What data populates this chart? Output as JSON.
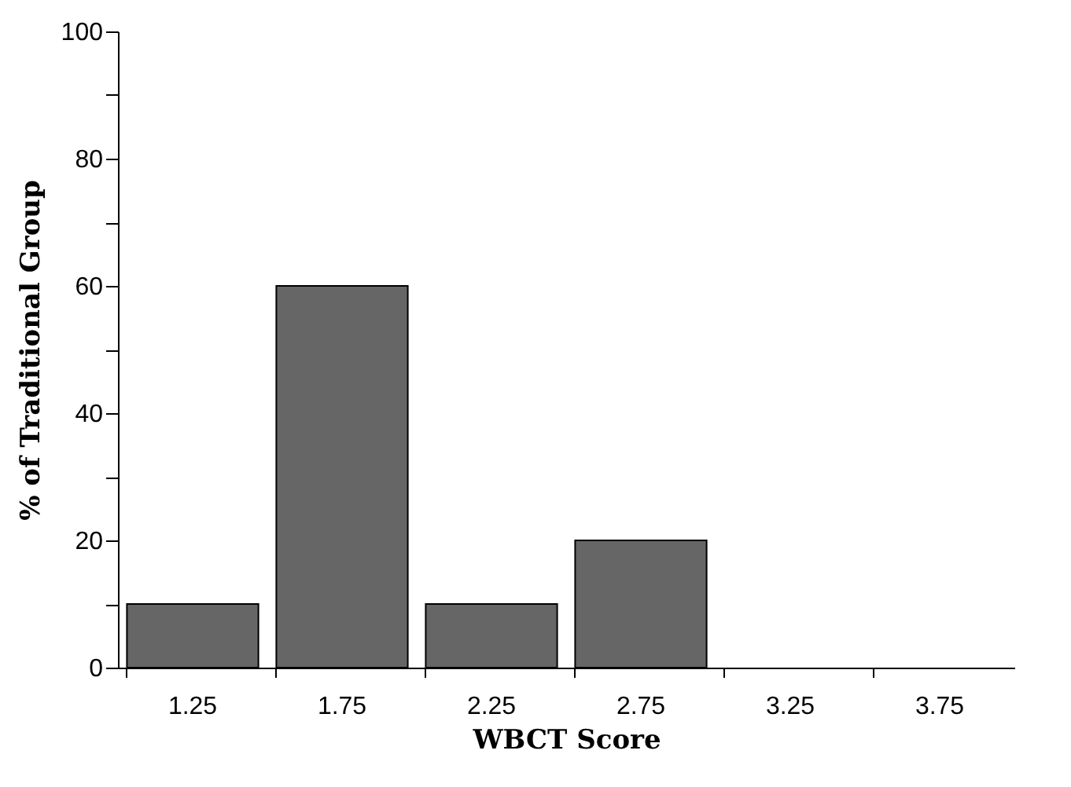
{
  "chart_data": {
    "type": "bar",
    "xlabel": "WBCT Score",
    "ylabel": "% of Traditional Group",
    "categories": [
      "1.25",
      "1.75",
      "2.25",
      "2.75",
      "3.25",
      "3.75"
    ],
    "values": [
      10,
      60,
      10,
      20,
      0,
      0
    ],
    "color": "#666666",
    "ylim": [
      0,
      100
    ],
    "yticks": [
      0,
      {
        "value": 10,
        "label": null
      },
      20,
      {
        "value": 30,
        "label": null
      },
      40,
      {
        "value": 50,
        "label": null
      },
      60,
      {
        "value": 70,
        "label": null
      },
      80,
      {
        "value": 90,
        "label": null
      },
      100
    ],
    "grid": false
  }
}
